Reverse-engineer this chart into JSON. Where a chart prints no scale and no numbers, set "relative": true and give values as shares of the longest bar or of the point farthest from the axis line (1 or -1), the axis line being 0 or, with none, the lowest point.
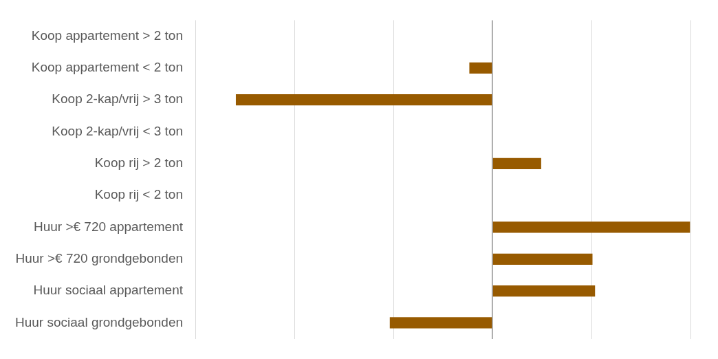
{
  "chart_data": {
    "type": "bar",
    "orientation": "horizontal",
    "relative": true,
    "grid": "x",
    "legend": false,
    "categories": [
      "Koop appartement > 2 ton",
      "Koop appartement < 2 ton",
      "Koop 2-kap/vrij > 3 ton",
      "Koop 2-kap/vrij < 3 ton",
      "Koop rij > 2 ton",
      "Koop rij < 2 ton",
      "Huur >€ 720 appartement",
      "Huur >€ 720 grondgebonden",
      "Huur sociaal appartement",
      "Huur sociaal grondgebonden"
    ],
    "series": [
      {
        "color": "#975a00",
        "values": [
          0,
          -0.09,
          -1,
          0,
          0.19,
          0,
          0.77,
          0.39,
          0.4,
          -0.4
        ]
      }
    ]
  }
}
